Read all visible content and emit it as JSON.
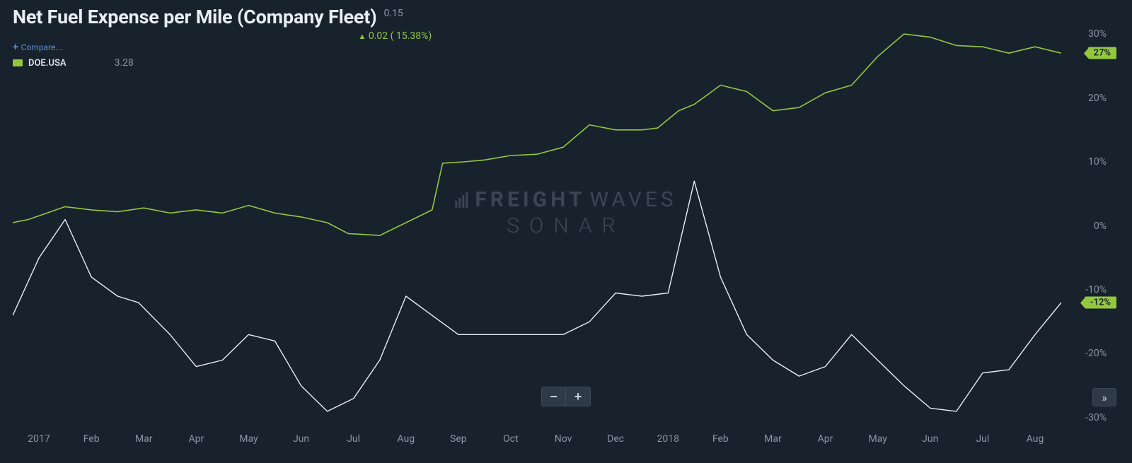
{
  "header": {
    "title": "Net Fuel Expense per Mile (Company Fleet)",
    "current_value": "0.15",
    "change_value": "0.02",
    "change_pct": "( 15.38%)",
    "compare_label": "Compare..."
  },
  "legend": {
    "swatch_color": "#93c83d",
    "label": "DOE.USA",
    "value": "3.28"
  },
  "watermark": {
    "line1_bold": "FREIGHT",
    "line1_light": "WAVES",
    "line2": "SONAR"
  },
  "chart": {
    "type": "line",
    "background_color": "#17222d",
    "x_labels": [
      "2017",
      "Feb",
      "Mar",
      "Apr",
      "May",
      "Jun",
      "Jul",
      "Aug",
      "Sep",
      "Oct",
      "Nov",
      "Dec",
      "2018",
      "Feb",
      "Mar",
      "Apr",
      "May",
      "Jun",
      "Jul",
      "Aug"
    ],
    "y_ticks": [
      -30,
      -20,
      -10,
      0,
      10,
      20,
      30
    ],
    "y_tick_labels": [
      "-30%",
      "-20%",
      "-10%",
      "0%",
      "10%",
      "20%",
      "30%"
    ],
    "ylim": [
      -31,
      32
    ],
    "badges": [
      {
        "value": "27%",
        "y": 27
      },
      {
        "value": "-12%",
        "y": -12
      }
    ],
    "series": [
      {
        "name": "doe-usa",
        "color": "#93c83d",
        "line_width": 1.6,
        "points": [
          [
            0,
            0.5
          ],
          [
            0.3,
            1
          ],
          [
            1,
            3
          ],
          [
            1.5,
            2.5
          ],
          [
            2,
            2.2
          ],
          [
            2.5,
            2.8
          ],
          [
            3,
            2
          ],
          [
            3.5,
            2.5
          ],
          [
            4,
            2
          ],
          [
            4.5,
            3.2
          ],
          [
            5,
            2
          ],
          [
            5.5,
            1.4
          ],
          [
            6,
            0.5
          ],
          [
            6.4,
            -1.2
          ],
          [
            7,
            -1.5
          ],
          [
            7.5,
            0.5
          ],
          [
            8,
            2.5
          ],
          [
            8.2,
            9.8
          ],
          [
            8.6,
            10
          ],
          [
            9,
            10.3
          ],
          [
            9.5,
            11
          ],
          [
            10,
            11.2
          ],
          [
            10.5,
            12.3
          ],
          [
            11,
            15.8
          ],
          [
            11.5,
            15
          ],
          [
            12,
            15
          ],
          [
            12.3,
            15.3
          ],
          [
            12.7,
            18
          ],
          [
            13,
            19
          ],
          [
            13.5,
            22
          ],
          [
            14,
            21
          ],
          [
            14.5,
            18
          ],
          [
            15,
            18.5
          ],
          [
            15.5,
            20.8
          ],
          [
            16,
            22
          ],
          [
            16.5,
            26.5
          ],
          [
            17,
            30
          ],
          [
            17.5,
            29.5
          ],
          [
            18,
            28.2
          ],
          [
            18.5,
            28
          ],
          [
            19,
            27
          ],
          [
            19.5,
            28
          ],
          [
            20,
            27
          ]
        ]
      },
      {
        "name": "primary",
        "color": "#e8eef4",
        "line_width": 1.4,
        "points": [
          [
            0,
            -14
          ],
          [
            0.5,
            -5
          ],
          [
            1,
            1
          ],
          [
            1.5,
            -8
          ],
          [
            2,
            -11
          ],
          [
            2.4,
            -12
          ],
          [
            3,
            -17
          ],
          [
            3.5,
            -22
          ],
          [
            4,
            -21
          ],
          [
            4.5,
            -17
          ],
          [
            5,
            -18
          ],
          [
            5.5,
            -25
          ],
          [
            6,
            -29
          ],
          [
            6.5,
            -27
          ],
          [
            7,
            -21
          ],
          [
            7.5,
            -11
          ],
          [
            8,
            -14
          ],
          [
            8.5,
            -17
          ],
          [
            9,
            -17
          ],
          [
            9.5,
            -17
          ],
          [
            10,
            -17
          ],
          [
            10.5,
            -17
          ],
          [
            11,
            -15
          ],
          [
            11.5,
            -10.5
          ],
          [
            12,
            -11
          ],
          [
            12.5,
            -10.5
          ],
          [
            13,
            7
          ],
          [
            13.5,
            -8
          ],
          [
            14,
            -17
          ],
          [
            14.5,
            -21
          ],
          [
            15,
            -23.5
          ],
          [
            15.5,
            -22
          ],
          [
            16,
            -17
          ],
          [
            16.5,
            -21
          ],
          [
            17,
            -25
          ],
          [
            17.5,
            -28.5
          ],
          [
            18,
            -29
          ],
          [
            18.5,
            -23
          ],
          [
            19,
            -22.5
          ],
          [
            19.5,
            -17
          ],
          [
            20,
            -12
          ]
        ]
      }
    ]
  },
  "controls": {
    "zoom_out": "−",
    "zoom_in": "+",
    "expand": "»"
  },
  "colors": {
    "bg": "#17222d",
    "text_muted": "#8a96a3",
    "text_main": "#e8eef4",
    "accent": "#93c83d",
    "watermark": "#3a4753"
  }
}
